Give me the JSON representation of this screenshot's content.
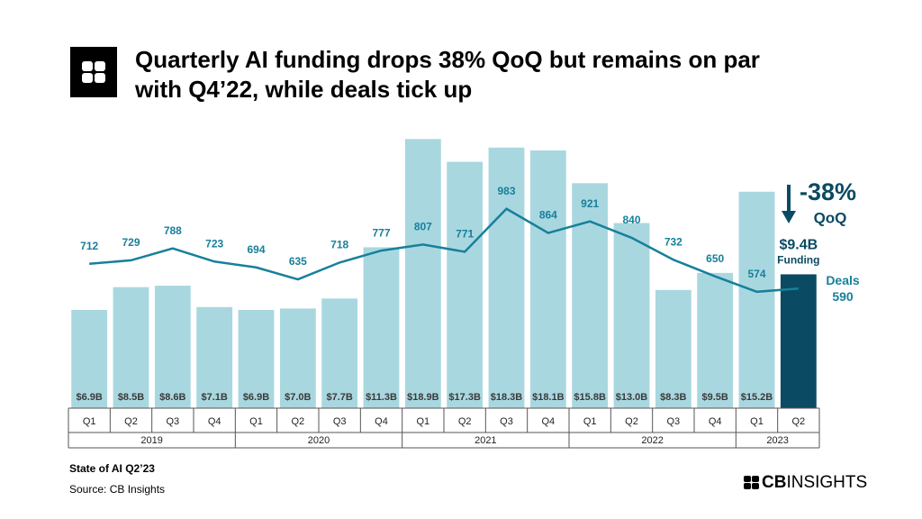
{
  "chart_data": {
    "type": "bar-line",
    "title": [
      "Quarterly AI funding drops 38% QoQ but remains on par",
      "with Q4’22, while deals tick up"
    ],
    "category_groups": [
      {
        "label": "2019",
        "categories": [
          "Q1",
          "Q2",
          "Q3",
          "Q4"
        ]
      },
      {
        "label": "2020",
        "categories": [
          "Q1",
          "Q2",
          "Q3",
          "Q4"
        ]
      },
      {
        "label": "2021",
        "categories": [
          "Q1",
          "Q2",
          "Q3",
          "Q4"
        ]
      },
      {
        "label": "2022",
        "categories": [
          "Q1",
          "Q2",
          "Q3",
          "Q4"
        ]
      },
      {
        "label": "2023",
        "categories": [
          "Q1",
          "Q2"
        ]
      }
    ],
    "series": [
      {
        "name": "Funding",
        "type": "bar",
        "color": "#a9d7e0",
        "highlight_color": "#0b4a63",
        "values": [
          6.9,
          8.5,
          8.6,
          7.1,
          6.9,
          7.0,
          7.7,
          11.3,
          18.9,
          17.3,
          18.3,
          18.1,
          15.8,
          13.0,
          8.3,
          9.5,
          15.2,
          9.4
        ],
        "value_labels": [
          "$6.9B",
          "$8.5B",
          "$8.6B",
          "$7.1B",
          "$6.9B",
          "$7.0B",
          "$7.7B",
          "$11.3B",
          "$18.9B",
          "$17.3B",
          "$18.3B",
          "$18.1B",
          "$15.8B",
          "$13.0B",
          "$8.3B",
          "$9.5B",
          "$15.2B",
          "$9.4B"
        ]
      },
      {
        "name": "Deals",
        "type": "line",
        "axis": "y2",
        "color": "#17809a",
        "values": [
          712,
          729,
          788,
          723,
          694,
          635,
          718,
          777,
          807,
          771,
          983,
          864,
          921,
          840,
          732,
          650,
          574,
          590
        ]
      }
    ],
    "ylim": [
      0,
      19.3
    ],
    "y2lim": [
      0,
      1355
    ],
    "annotations": [
      "-38%",
      "QoQ"
    ],
    "footer": [
      "State of AI Q2’23",
      "Source: CB Insights"
    ],
    "brand": [
      "CB",
      "INSIGHTS"
    ]
  }
}
